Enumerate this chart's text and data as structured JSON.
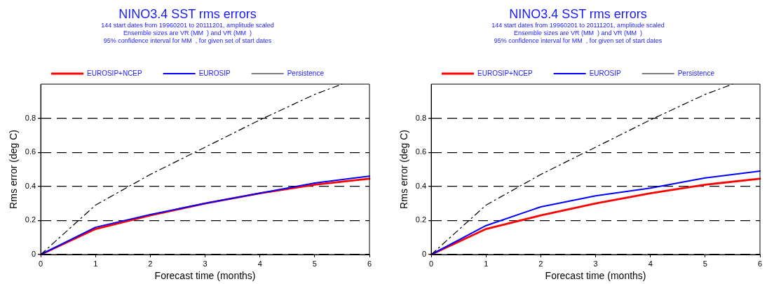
{
  "chart_data": [
    {
      "type": "line",
      "title": "NINO3.4 SST rms errors",
      "subtitle": "144 start dates from 19960201 to 20111201, amplitude scaled\nEnsemble sizes are VR (MM  ) and VR (MM  )\n95% confidence interval for MM  , for given set of start dates",
      "xlabel": "Forecast time (months)",
      "ylabel": "Rms error (deg C)",
      "series": [
        {
          "name": "EUROSIP+NCEP",
          "color": "#ff0000",
          "x": [
            0,
            1,
            2,
            3,
            4,
            5,
            6
          ],
          "values": [
            0,
            0.15,
            0.23,
            0.3,
            0.36,
            0.41,
            0.445
          ]
        },
        {
          "name": "EUROSIP",
          "color": "#0000ff",
          "x": [
            0,
            1,
            2,
            3,
            4,
            5,
            6
          ],
          "values": [
            0,
            0.16,
            0.235,
            0.3,
            0.36,
            0.42,
            0.46
          ]
        },
        {
          "name": "Persistence",
          "color": "#000000",
          "line_style": "dashed",
          "x": [
            0,
            1,
            2,
            3,
            4,
            5,
            5.5
          ],
          "values": [
            0,
            0.29,
            0.47,
            0.63,
            0.79,
            0.94,
            1.0
          ]
        }
      ],
      "xlim": [
        0,
        6
      ],
      "xticks": [
        0,
        1,
        2,
        3,
        4,
        5,
        6
      ],
      "ylim": [
        0,
        1
      ],
      "yticks": [
        0,
        0.2,
        0.4,
        0.6,
        0.8
      ],
      "grid": "y",
      "legend": "top",
      "marker": "none",
      "line_style": "solid"
    },
    {
      "type": "line",
      "title": "NINO3.4 SST rms errors",
      "subtitle": "144 start dates from 19960201 to 20111201, amplitude scaled\nEnsemble sizes are VR (MM  ) and VR (MM  )\n95% confidence interval for MM  , for given set of start dates",
      "xlabel": "Forecast time (months)",
      "ylabel": "Rms error (deg C)",
      "series": [
        {
          "name": "EUROSIP+NCEP",
          "color": "#ff0000",
          "x": [
            0,
            1,
            2,
            3,
            4,
            5,
            6
          ],
          "values": [
            0,
            0.15,
            0.23,
            0.3,
            0.36,
            0.41,
            0.445
          ]
        },
        {
          "name": "EUROSIP",
          "color": "#0000ff",
          "x": [
            0,
            1,
            2,
            3,
            4,
            5,
            6
          ],
          "values": [
            0,
            0.17,
            0.28,
            0.345,
            0.39,
            0.45,
            0.49
          ]
        },
        {
          "name": "Persistence",
          "color": "#000000",
          "line_style": "dashed",
          "x": [
            0,
            1,
            2,
            3,
            4,
            5,
            5.5
          ],
          "values": [
            0,
            0.29,
            0.47,
            0.63,
            0.79,
            0.94,
            1.0
          ]
        }
      ],
      "xlim": [
        0,
        6
      ],
      "xticks": [
        0,
        1,
        2,
        3,
        4,
        5,
        6
      ],
      "ylim": [
        0,
        1
      ],
      "yticks": [
        0,
        0.2,
        0.4,
        0.6,
        0.8
      ],
      "grid": "y",
      "legend": "top",
      "marker": "none",
      "line_style": "solid"
    }
  ]
}
